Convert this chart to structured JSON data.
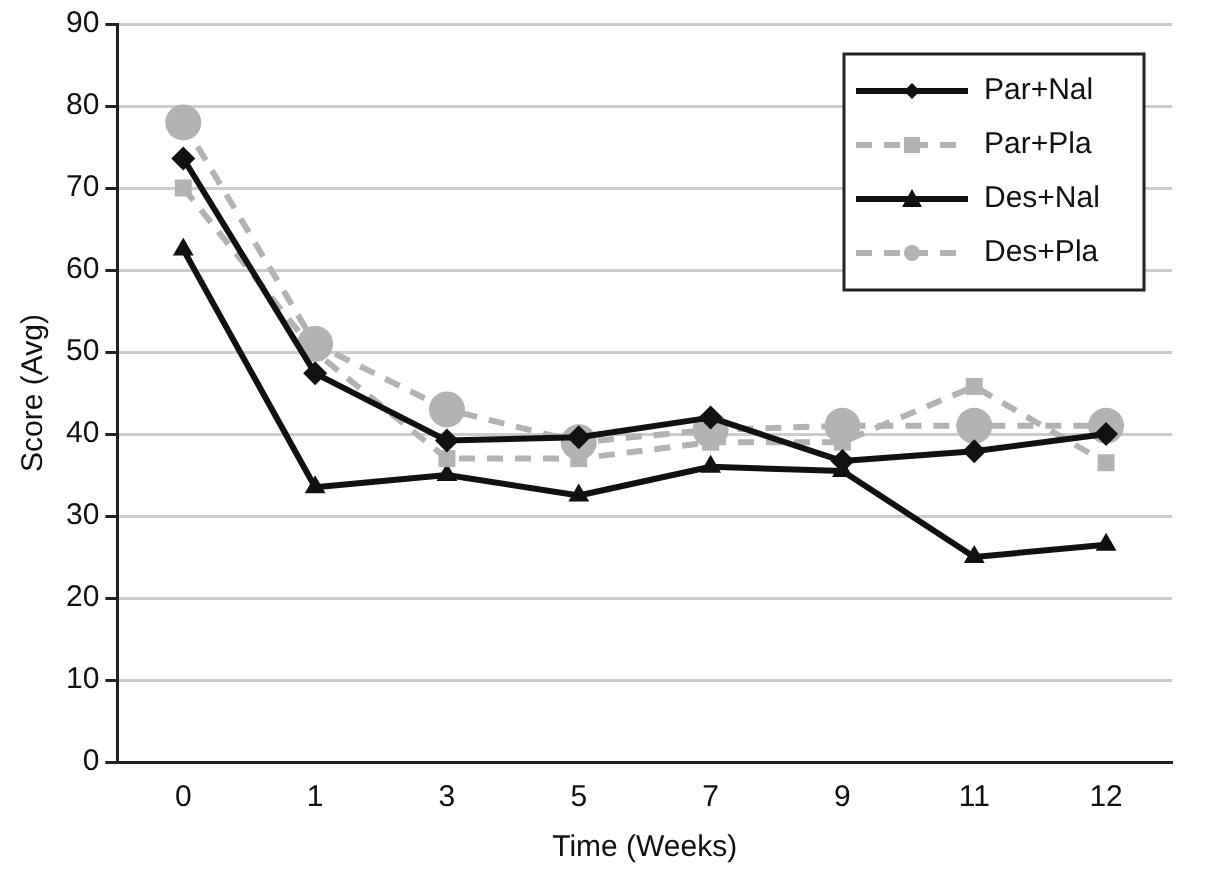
{
  "chart_data": {
    "type": "line",
    "xlabel": "Time (Weeks)",
    "ylabel": "Score (Avg)",
    "categories": [
      "0",
      "1",
      "3",
      "5",
      "7",
      "9",
      "11",
      "12"
    ],
    "series": [
      {
        "name": "Par+Nal",
        "color": "#111111",
        "marker": "diamond",
        "line_style": "solid",
        "values": [
          73.6,
          47.4,
          39.2,
          39.6,
          42,
          36.7,
          37.9,
          40
        ]
      },
      {
        "name": "Par+Pla",
        "color": "#b3b3b3",
        "marker": "square",
        "line_style": "dashed",
        "values": [
          70,
          50,
          37,
          37,
          39,
          39,
          45.8,
          36.5
        ]
      },
      {
        "name": "Des+Nal",
        "color": "#111111",
        "marker": "triangle",
        "line_style": "solid",
        "values": [
          62.5,
          33.5,
          35,
          32.5,
          36,
          35.5,
          25,
          26.5
        ]
      },
      {
        "name": "Des+Pla",
        "color": "#b3b3b3",
        "marker": "circle",
        "line_style": "dashed",
        "values": [
          78,
          51,
          43,
          39,
          40.5,
          41,
          41,
          41
        ]
      }
    ],
    "ylim": [
      0,
      90
    ],
    "yticks": [
      0,
      10,
      20,
      30,
      40,
      50,
      60,
      70,
      80,
      90
    ],
    "grid": "y",
    "legend": "top right"
  }
}
